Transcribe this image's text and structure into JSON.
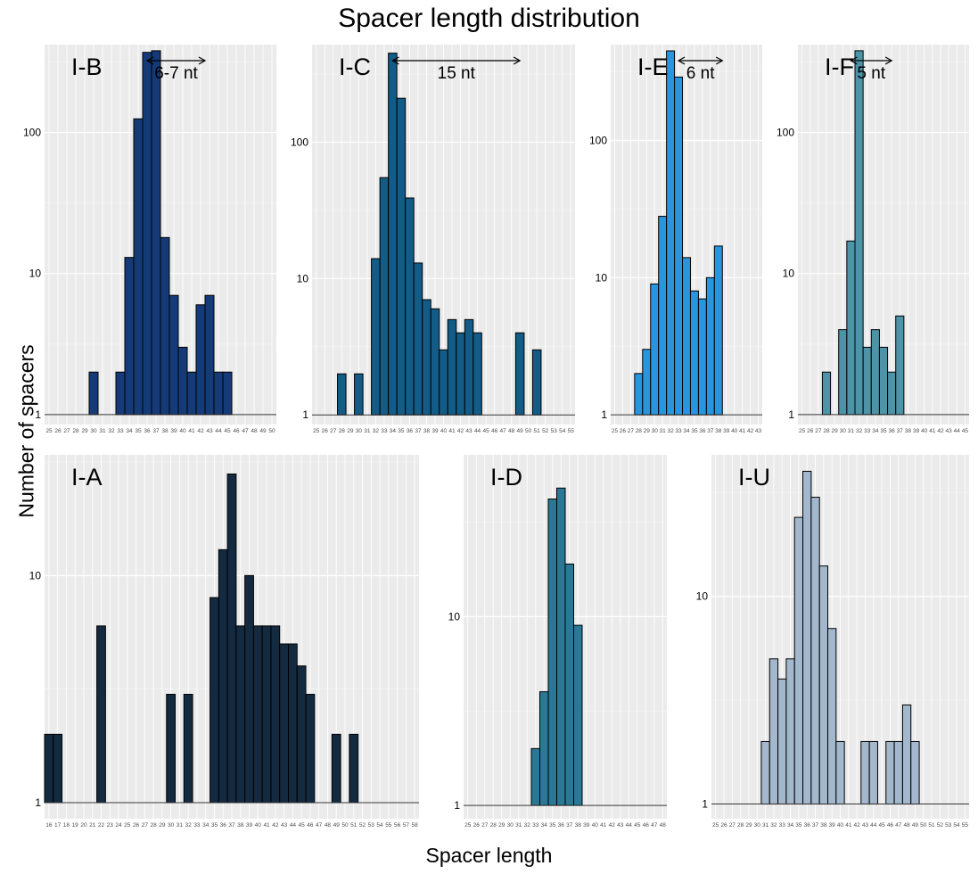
{
  "title": "Spacer length distribution",
  "ylabel": "Number of spacers",
  "xlabel": "Spacer length",
  "chart_data": [
    {
      "type": "bar",
      "label": "I-B",
      "color": "#143a78",
      "scale": "log",
      "yticks": [
        1,
        10,
        100
      ],
      "ylim": [
        0.85,
        420
      ],
      "annotation": "6-7 nt",
      "arrow_from": 36,
      "arrow_to": 42.5,
      "categories": [
        "25",
        "26",
        "27",
        "28",
        "29",
        "30",
        "31",
        "32",
        "33",
        "34",
        "35",
        "36",
        "37",
        "38",
        "39",
        "40",
        "41",
        "42",
        "43",
        "44",
        "45",
        "46",
        "47",
        "48",
        "49",
        "50"
      ],
      "values": [
        0,
        0,
        0,
        0,
        0,
        2,
        0,
        0,
        2,
        13,
        125,
        370,
        380,
        18,
        7,
        3,
        2,
        6,
        7,
        2,
        2,
        0,
        0,
        0,
        0,
        0
      ]
    },
    {
      "type": "bar",
      "label": "I-C",
      "color": "#135c87",
      "scale": "log",
      "yticks": [
        1,
        10,
        100
      ],
      "ylim": [
        0.85,
        520
      ],
      "annotation": "15 nt",
      "arrow_from": 34,
      "arrow_to": 49,
      "categories": [
        "25",
        "26",
        "27",
        "28",
        "29",
        "30",
        "31",
        "32",
        "33",
        "34",
        "35",
        "36",
        "37",
        "38",
        "39",
        "40",
        "41",
        "42",
        "43",
        "44",
        "45",
        "46",
        "47",
        "48",
        "49",
        "50",
        "51",
        "52",
        "53",
        "54",
        "55"
      ],
      "values": [
        0,
        0,
        0,
        2,
        0,
        2,
        0,
        14,
        55,
        450,
        210,
        39,
        13,
        7,
        6,
        3,
        5,
        4,
        5,
        4,
        0,
        0,
        0,
        0,
        4,
        0,
        3,
        0,
        0,
        0,
        0
      ]
    },
    {
      "type": "bar",
      "label": "I-E",
      "color": "#2896de",
      "scale": "log",
      "yticks": [
        1,
        10,
        100
      ],
      "ylim": [
        0.85,
        500
      ],
      "annotation": "6 nt",
      "arrow_from": 33,
      "arrow_to": 38.5,
      "categories": [
        "25",
        "26",
        "27",
        "28",
        "29",
        "30",
        "31",
        "32",
        "33",
        "34",
        "35",
        "36",
        "37",
        "38",
        "39",
        "40",
        "41",
        "42",
        "43"
      ],
      "values": [
        0,
        0,
        0,
        2,
        3,
        9,
        28,
        450,
        290,
        14,
        8,
        7,
        10,
        17,
        0,
        0,
        0,
        0,
        0
      ]
    },
    {
      "type": "bar",
      "label": "I-F",
      "color": "#4d94a8",
      "scale": "log",
      "yticks": [
        1,
        10,
        100
      ],
      "ylim": [
        0.85,
        420
      ],
      "annotation": "5 nt",
      "arrow_from": 31,
      "arrow_to": 36,
      "categories": [
        "25",
        "26",
        "27",
        "28",
        "29",
        "30",
        "31",
        "32",
        "33",
        "34",
        "35",
        "36",
        "37",
        "38",
        "39",
        "40",
        "41",
        "42",
        "43",
        "44",
        "45"
      ],
      "values": [
        0,
        0,
        0,
        2,
        0,
        4,
        17,
        380,
        3,
        4,
        3,
        2,
        5,
        0,
        0,
        0,
        0,
        0,
        0,
        0,
        0
      ]
    },
    {
      "type": "bar",
      "label": "I-A",
      "color": "#142a40",
      "scale": "log",
      "yticks": [
        1,
        10
      ],
      "ylim": [
        0.85,
        34
      ],
      "annotation": "",
      "arrow_from": null,
      "arrow_to": null,
      "categories": [
        "16",
        "17",
        "18",
        "19",
        "20",
        "21",
        "22",
        "23",
        "24",
        "25",
        "26",
        "27",
        "28",
        "29",
        "30",
        "31",
        "32",
        "33",
        "34",
        "35",
        "36",
        "37",
        "38",
        "39",
        "40",
        "41",
        "42",
        "43",
        "44",
        "45",
        "46",
        "47",
        "48",
        "49",
        "50",
        "51",
        "52",
        "53",
        "54",
        "55",
        "56",
        "57",
        "58"
      ],
      "values": [
        2,
        2,
        0,
        0,
        0,
        0,
        6,
        0,
        0,
        0,
        0,
        0,
        0,
        0,
        3,
        0,
        3,
        0,
        0,
        8,
        13,
        28,
        6,
        10,
        6,
        6,
        6,
        5,
        5,
        4,
        3,
        0,
        0,
        2,
        0,
        2,
        0,
        0,
        0,
        0,
        0,
        0,
        0
      ]
    },
    {
      "type": "bar",
      "label": "I-D",
      "color": "#2a7896",
      "scale": "log",
      "yticks": [
        1,
        10
      ],
      "ylim": [
        0.85,
        72
      ],
      "annotation": "",
      "arrow_from": null,
      "arrow_to": null,
      "categories": [
        "25",
        "26",
        "27",
        "28",
        "29",
        "30",
        "31",
        "32",
        "33",
        "34",
        "35",
        "36",
        "37",
        "38",
        "39",
        "40",
        "41",
        "42",
        "43",
        "44",
        "45",
        "46",
        "47",
        "48"
      ],
      "values": [
        0,
        0,
        0,
        0,
        0,
        0,
        0,
        0,
        2,
        4,
        42,
        48,
        19,
        9,
        0,
        0,
        0,
        0,
        0,
        0,
        0,
        0,
        0,
        0
      ]
    },
    {
      "type": "bar",
      "label": "I-U",
      "color": "#a3b8cc",
      "scale": "log",
      "yticks": [
        1,
        10
      ],
      "ylim": [
        0.85,
        48
      ],
      "annotation": "",
      "arrow_from": null,
      "arrow_to": null,
      "categories": [
        "25",
        "26",
        "27",
        "28",
        "29",
        "30",
        "31",
        "32",
        "33",
        "34",
        "35",
        "36",
        "37",
        "38",
        "39",
        "40",
        "41",
        "42",
        "43",
        "44",
        "45",
        "46",
        "47",
        "48",
        "49",
        "50",
        "51",
        "52",
        "53",
        "54",
        "55"
      ],
      "values": [
        0,
        0,
        0,
        0,
        0,
        0,
        2,
        5,
        4,
        5,
        24,
        40,
        30,
        14,
        7,
        2,
        0,
        0,
        2,
        2,
        0,
        2,
        2,
        3,
        2,
        0,
        0,
        0,
        0,
        0,
        0
      ]
    }
  ]
}
